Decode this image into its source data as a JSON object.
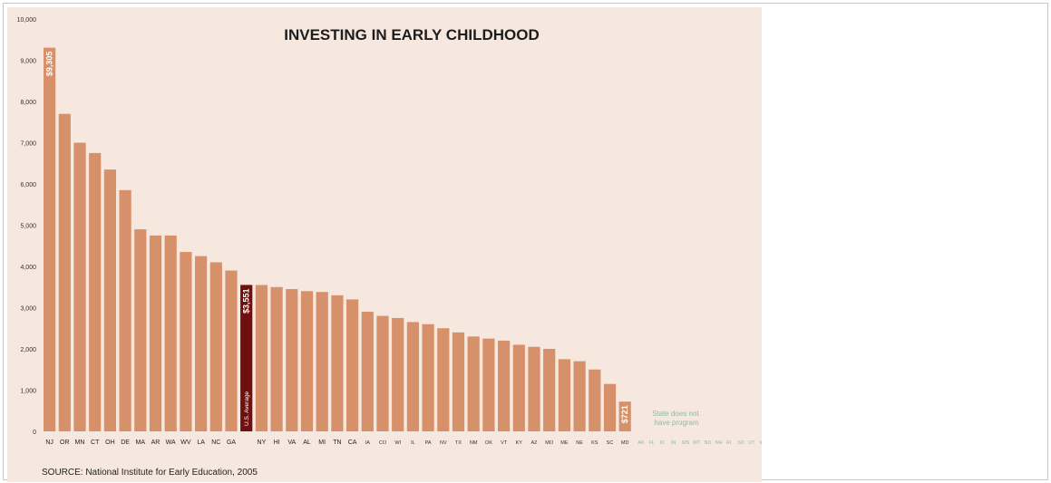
{
  "chart_data": {
    "type": "bar",
    "title": "INVESTING IN EARLY CHILDHOOD",
    "source": "SOURCE: National Institute for Early Education, 2005",
    "ylim": [
      0,
      10000
    ],
    "yticks": [
      {
        "value": 0,
        "label": "0"
      },
      {
        "value": 1000,
        "label": "1,000"
      },
      {
        "value": 2000,
        "label": "2,000"
      },
      {
        "value": 3000,
        "label": "3,000"
      },
      {
        "value": 4000,
        "label": "4,000"
      },
      {
        "value": 5000,
        "label": "5,000"
      },
      {
        "value": 6000,
        "label": "6,000"
      },
      {
        "value": 7000,
        "label": "7,000"
      },
      {
        "value": 8000,
        "label": "8,000"
      },
      {
        "value": 9000,
        "label": "9,000"
      },
      {
        "value": 10000,
        "label": "10,000"
      }
    ],
    "bars": [
      {
        "category": "NJ",
        "value": 9305,
        "data_label": "$9,305"
      },
      {
        "category": "OR",
        "value": 7700
      },
      {
        "category": "MN",
        "value": 7000
      },
      {
        "category": "CT",
        "value": 6750
      },
      {
        "category": "OH",
        "value": 6350
      },
      {
        "category": "DE",
        "value": 5850
      },
      {
        "category": "MA",
        "value": 4900
      },
      {
        "category": "AR",
        "value": 4750
      },
      {
        "category": "WA",
        "value": 4750
      },
      {
        "category": "WV",
        "value": 4350
      },
      {
        "category": "LA",
        "value": 4250
      },
      {
        "category": "NC",
        "value": 4100
      },
      {
        "category": "GA",
        "value": 3900
      },
      {
        "category": "",
        "value": 3551,
        "data_label": "$3,551",
        "average": true,
        "average_label": "U.S. Average"
      },
      {
        "category": "NY",
        "value": 3550
      },
      {
        "category": "HI",
        "value": 3500
      },
      {
        "category": "VA",
        "value": 3450
      },
      {
        "category": "AL",
        "value": 3400
      },
      {
        "category": "MI",
        "value": 3380
      },
      {
        "category": "TN",
        "value": 3300
      },
      {
        "category": "CA",
        "value": 3200
      },
      {
        "category": "IA",
        "value": 2900
      },
      {
        "category": "CO",
        "value": 2800
      },
      {
        "category": "WI",
        "value": 2750
      },
      {
        "category": "IL",
        "value": 2650
      },
      {
        "category": "PA",
        "value": 2600
      },
      {
        "category": "NV",
        "value": 2500
      },
      {
        "category": "TX",
        "value": 2400
      },
      {
        "category": "NM",
        "value": 2300
      },
      {
        "category": "OK",
        "value": 2250
      },
      {
        "category": "VT",
        "value": 2200
      },
      {
        "category": "KY",
        "value": 2100
      },
      {
        "category": "AZ",
        "value": 2050
      },
      {
        "category": "MO",
        "value": 2000
      },
      {
        "category": "ME",
        "value": 1750
      },
      {
        "category": "NE",
        "value": 1700
      },
      {
        "category": "KS",
        "value": 1500
      },
      {
        "category": "SC",
        "value": 1150
      },
      {
        "category": "MD",
        "value": 721,
        "data_label": "$721"
      }
    ],
    "no_program_note": "State does not have program",
    "no_program_states": [
      "AK",
      "FL",
      "ID",
      "IN",
      "MS",
      "MT",
      "ND",
      "NH",
      "RI",
      "SD",
      "UT",
      "WY"
    ],
    "colors": {
      "background": "#f6e8df",
      "bar": "#d6906a",
      "average_bar": "#6f0f0e",
      "no_program_text": "#8fb9a6"
    }
  }
}
